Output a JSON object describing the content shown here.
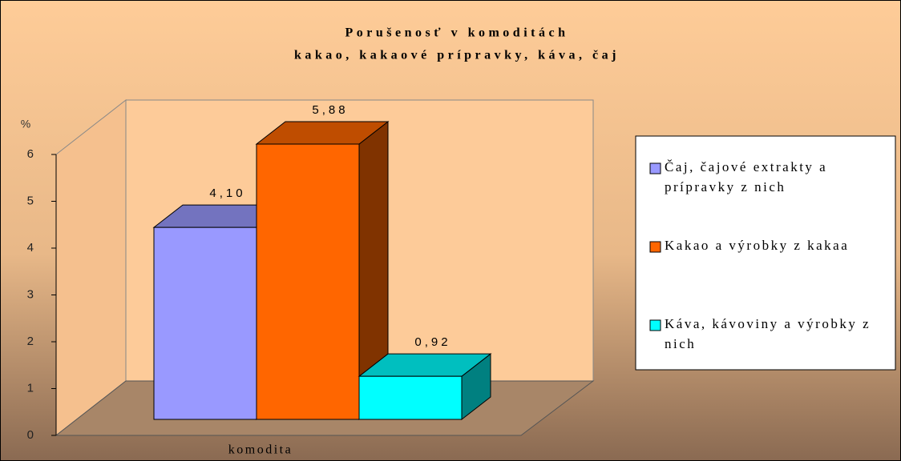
{
  "chart_data": {
    "type": "bar3d",
    "title": "Porušenosť v komoditách",
    "subtitle": "kakao, kakaové prípravky, káva, čaj",
    "y_label": "%",
    "categories": [
      "komodita"
    ],
    "series": [
      {
        "name": "Čaj, čajové extrakty a prípravky z nich",
        "color": "#9999ff",
        "values": [
          4.1
        ],
        "value_labels": [
          "4,10"
        ]
      },
      {
        "name": "Kakao a výrobky z kakaa",
        "color": "#ff6600",
        "values": [
          5.88
        ],
        "value_labels": [
          "5,88"
        ]
      },
      {
        "name": "Káva, kávoviny a výrobky z nich",
        "color": "#00ffff",
        "values": [
          0.92
        ],
        "value_labels": [
          "0,92"
        ]
      }
    ],
    "ylim": [
      0,
      6
    ],
    "yticks": [
      0,
      1,
      2,
      3,
      4,
      5,
      6
    ],
    "legend": "right"
  }
}
